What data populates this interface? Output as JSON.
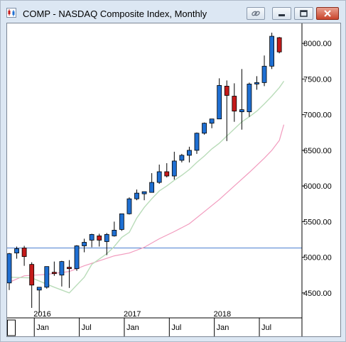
{
  "window": {
    "title": "COMP - NASDAQ Composite Index, Monthly",
    "icon": "chart-app-icon",
    "buttons": [
      "link-icon",
      "minimize-icon",
      "maximize-icon",
      "close-icon"
    ]
  },
  "chart_data": {
    "type": "candlestick",
    "series": [
      {
        "name": "price",
        "color_up": "#1f6fd2",
        "color_down": "#c41a1a"
      },
      {
        "name": "ma-short",
        "color": "#b9dcb9"
      },
      {
        "name": "ma-long",
        "color": "#f29bbe"
      }
    ],
    "yticks": [
      {
        "value": 4500,
        "label": "4500.00"
      },
      {
        "value": 5000,
        "label": "5000.00"
      },
      {
        "value": 5500,
        "label": "5500.00"
      },
      {
        "value": 6000,
        "label": "6000.00"
      },
      {
        "value": 6500,
        "label": "6500.00"
      },
      {
        "value": 7000,
        "label": "7000.00"
      },
      {
        "value": 7500,
        "label": "7500.00"
      },
      {
        "value": 8000,
        "label": "8000.00"
      }
    ],
    "ylim": [
      4150,
      8280
    ],
    "xlim": [
      0,
      39.3
    ],
    "month_ticks": [
      {
        "index": 4,
        "label": "Jan"
      },
      {
        "index": 10,
        "label": "Jul"
      },
      {
        "index": 16,
        "label": "Jan"
      },
      {
        "index": 22,
        "label": "Jul"
      },
      {
        "index": 28,
        "label": "Jan"
      },
      {
        "index": 34,
        "label": "Jul"
      }
    ],
    "year_labels": [
      {
        "index": 4,
        "label": "2016"
      },
      {
        "index": 16,
        "label": "2017"
      },
      {
        "index": 28,
        "label": "2018"
      }
    ],
    "horizontal_line": {
      "value": 5130,
      "color": "#4c7fd0"
    },
    "candles": [
      {
        "o": 4640,
        "h": 5060,
        "l": 4540,
        "c": 5050
      },
      {
        "o": 5060,
        "h": 5150,
        "l": 4980,
        "c": 5120
      },
      {
        "o": 5130,
        "h": 5160,
        "l": 4880,
        "c": 5010
      },
      {
        "o": 4900,
        "h": 4930,
        "l": 4290,
        "c": 4610
      },
      {
        "o": 4540,
        "h": 4570,
        "l": 4220,
        "c": 4580
      },
      {
        "o": 4580,
        "h": 4870,
        "l": 4560,
        "c": 4870
      },
      {
        "o": 4790,
        "h": 4940,
        "l": 4740,
        "c": 4770
      },
      {
        "o": 4750,
        "h": 4950,
        "l": 4590,
        "c": 4940
      },
      {
        "o": 4860,
        "h": 4960,
        "l": 4570,
        "c": 4840
      },
      {
        "o": 4840,
        "h": 5170,
        "l": 4810,
        "c": 5160
      },
      {
        "o": 5160,
        "h": 5260,
        "l": 5070,
        "c": 5210
      },
      {
        "o": 5240,
        "h": 5330,
        "l": 5140,
        "c": 5320
      },
      {
        "o": 5300,
        "h": 5330,
        "l": 5150,
        "c": 5240
      },
      {
        "o": 5220,
        "h": 5340,
        "l": 5030,
        "c": 5320
      },
      {
        "o": 5300,
        "h": 5500,
        "l": 5290,
        "c": 5380
      },
      {
        "o": 5390,
        "h": 5600,
        "l": 5370,
        "c": 5610
      },
      {
        "o": 5610,
        "h": 5840,
        "l": 5600,
        "c": 5820
      },
      {
        "o": 5820,
        "h": 5950,
        "l": 5800,
        "c": 5900
      },
      {
        "o": 5890,
        "h": 5920,
        "l": 5800,
        "c": 5920
      },
      {
        "o": 5910,
        "h": 6180,
        "l": 5910,
        "c": 6050
      },
      {
        "o": 6050,
        "h": 6300,
        "l": 6030,
        "c": 6200
      },
      {
        "o": 6200,
        "h": 6320,
        "l": 6120,
        "c": 6140
      },
      {
        "o": 6140,
        "h": 6480,
        "l": 6090,
        "c": 6350
      },
      {
        "o": 6360,
        "h": 6450,
        "l": 6330,
        "c": 6430
      },
      {
        "o": 6430,
        "h": 6550,
        "l": 6330,
        "c": 6500
      },
      {
        "o": 6500,
        "h": 6750,
        "l": 6450,
        "c": 6740
      },
      {
        "o": 6740,
        "h": 6890,
        "l": 6720,
        "c": 6880
      },
      {
        "o": 6880,
        "h": 6940,
        "l": 6810,
        "c": 6940
      },
      {
        "o": 6940,
        "h": 7510,
        "l": 6940,
        "c": 7410
      },
      {
        "o": 7400,
        "h": 7480,
        "l": 6630,
        "c": 7270
      },
      {
        "o": 7260,
        "h": 7440,
        "l": 6900,
        "c": 7050
      },
      {
        "o": 7040,
        "h": 7640,
        "l": 6790,
        "c": 7070
      },
      {
        "o": 7040,
        "h": 7450,
        "l": 6970,
        "c": 7430
      },
      {
        "o": 7430,
        "h": 7540,
        "l": 7350,
        "c": 7450
      },
      {
        "o": 7450,
        "h": 7830,
        "l": 7400,
        "c": 7680
      },
      {
        "o": 7680,
        "h": 8150,
        "l": 7640,
        "c": 8100
      },
      {
        "o": 8080,
        "h": 8090,
        "l": 7860,
        "c": 7880
      }
    ],
    "ma_short": [
      [
        0,
        4720
      ],
      [
        3,
        4710
      ],
      [
        6,
        4580
      ],
      [
        8,
        4500
      ],
      [
        10,
        4720
      ],
      [
        11,
        4900
      ],
      [
        13,
        5050
      ],
      [
        14,
        5150
      ],
      [
        15,
        5280
      ],
      [
        16,
        5350
      ],
      [
        17,
        5550
      ],
      [
        18,
        5700
      ],
      [
        19,
        5820
      ],
      [
        20,
        5930
      ],
      [
        21,
        6000
      ],
      [
        22,
        6080
      ],
      [
        23,
        6150
      ],
      [
        24,
        6230
      ],
      [
        25,
        6330
      ],
      [
        26,
        6420
      ],
      [
        27,
        6520
      ],
      [
        28,
        6600
      ],
      [
        29,
        6700
      ],
      [
        30,
        6800
      ],
      [
        31,
        6900
      ],
      [
        32,
        6970
      ],
      [
        33,
        7050
      ],
      [
        34,
        7150
      ],
      [
        35,
        7260
      ],
      [
        36,
        7380
      ],
      [
        36.6,
        7470
      ]
    ],
    "ma_long": [
      [
        0,
        4650
      ],
      [
        2,
        4740
      ],
      [
        5,
        4760
      ],
      [
        8,
        4800
      ],
      [
        10,
        4880
      ],
      [
        12,
        4950
      ],
      [
        14,
        5020
      ],
      [
        16,
        5060
      ],
      [
        18,
        5140
      ],
      [
        20,
        5260
      ],
      [
        22,
        5360
      ],
      [
        24,
        5470
      ],
      [
        26,
        5640
      ],
      [
        28,
        5810
      ],
      [
        30,
        6000
      ],
      [
        32,
        6190
      ],
      [
        34,
        6390
      ],
      [
        35,
        6500
      ],
      [
        36,
        6640
      ],
      [
        36.6,
        6860
      ]
    ]
  }
}
